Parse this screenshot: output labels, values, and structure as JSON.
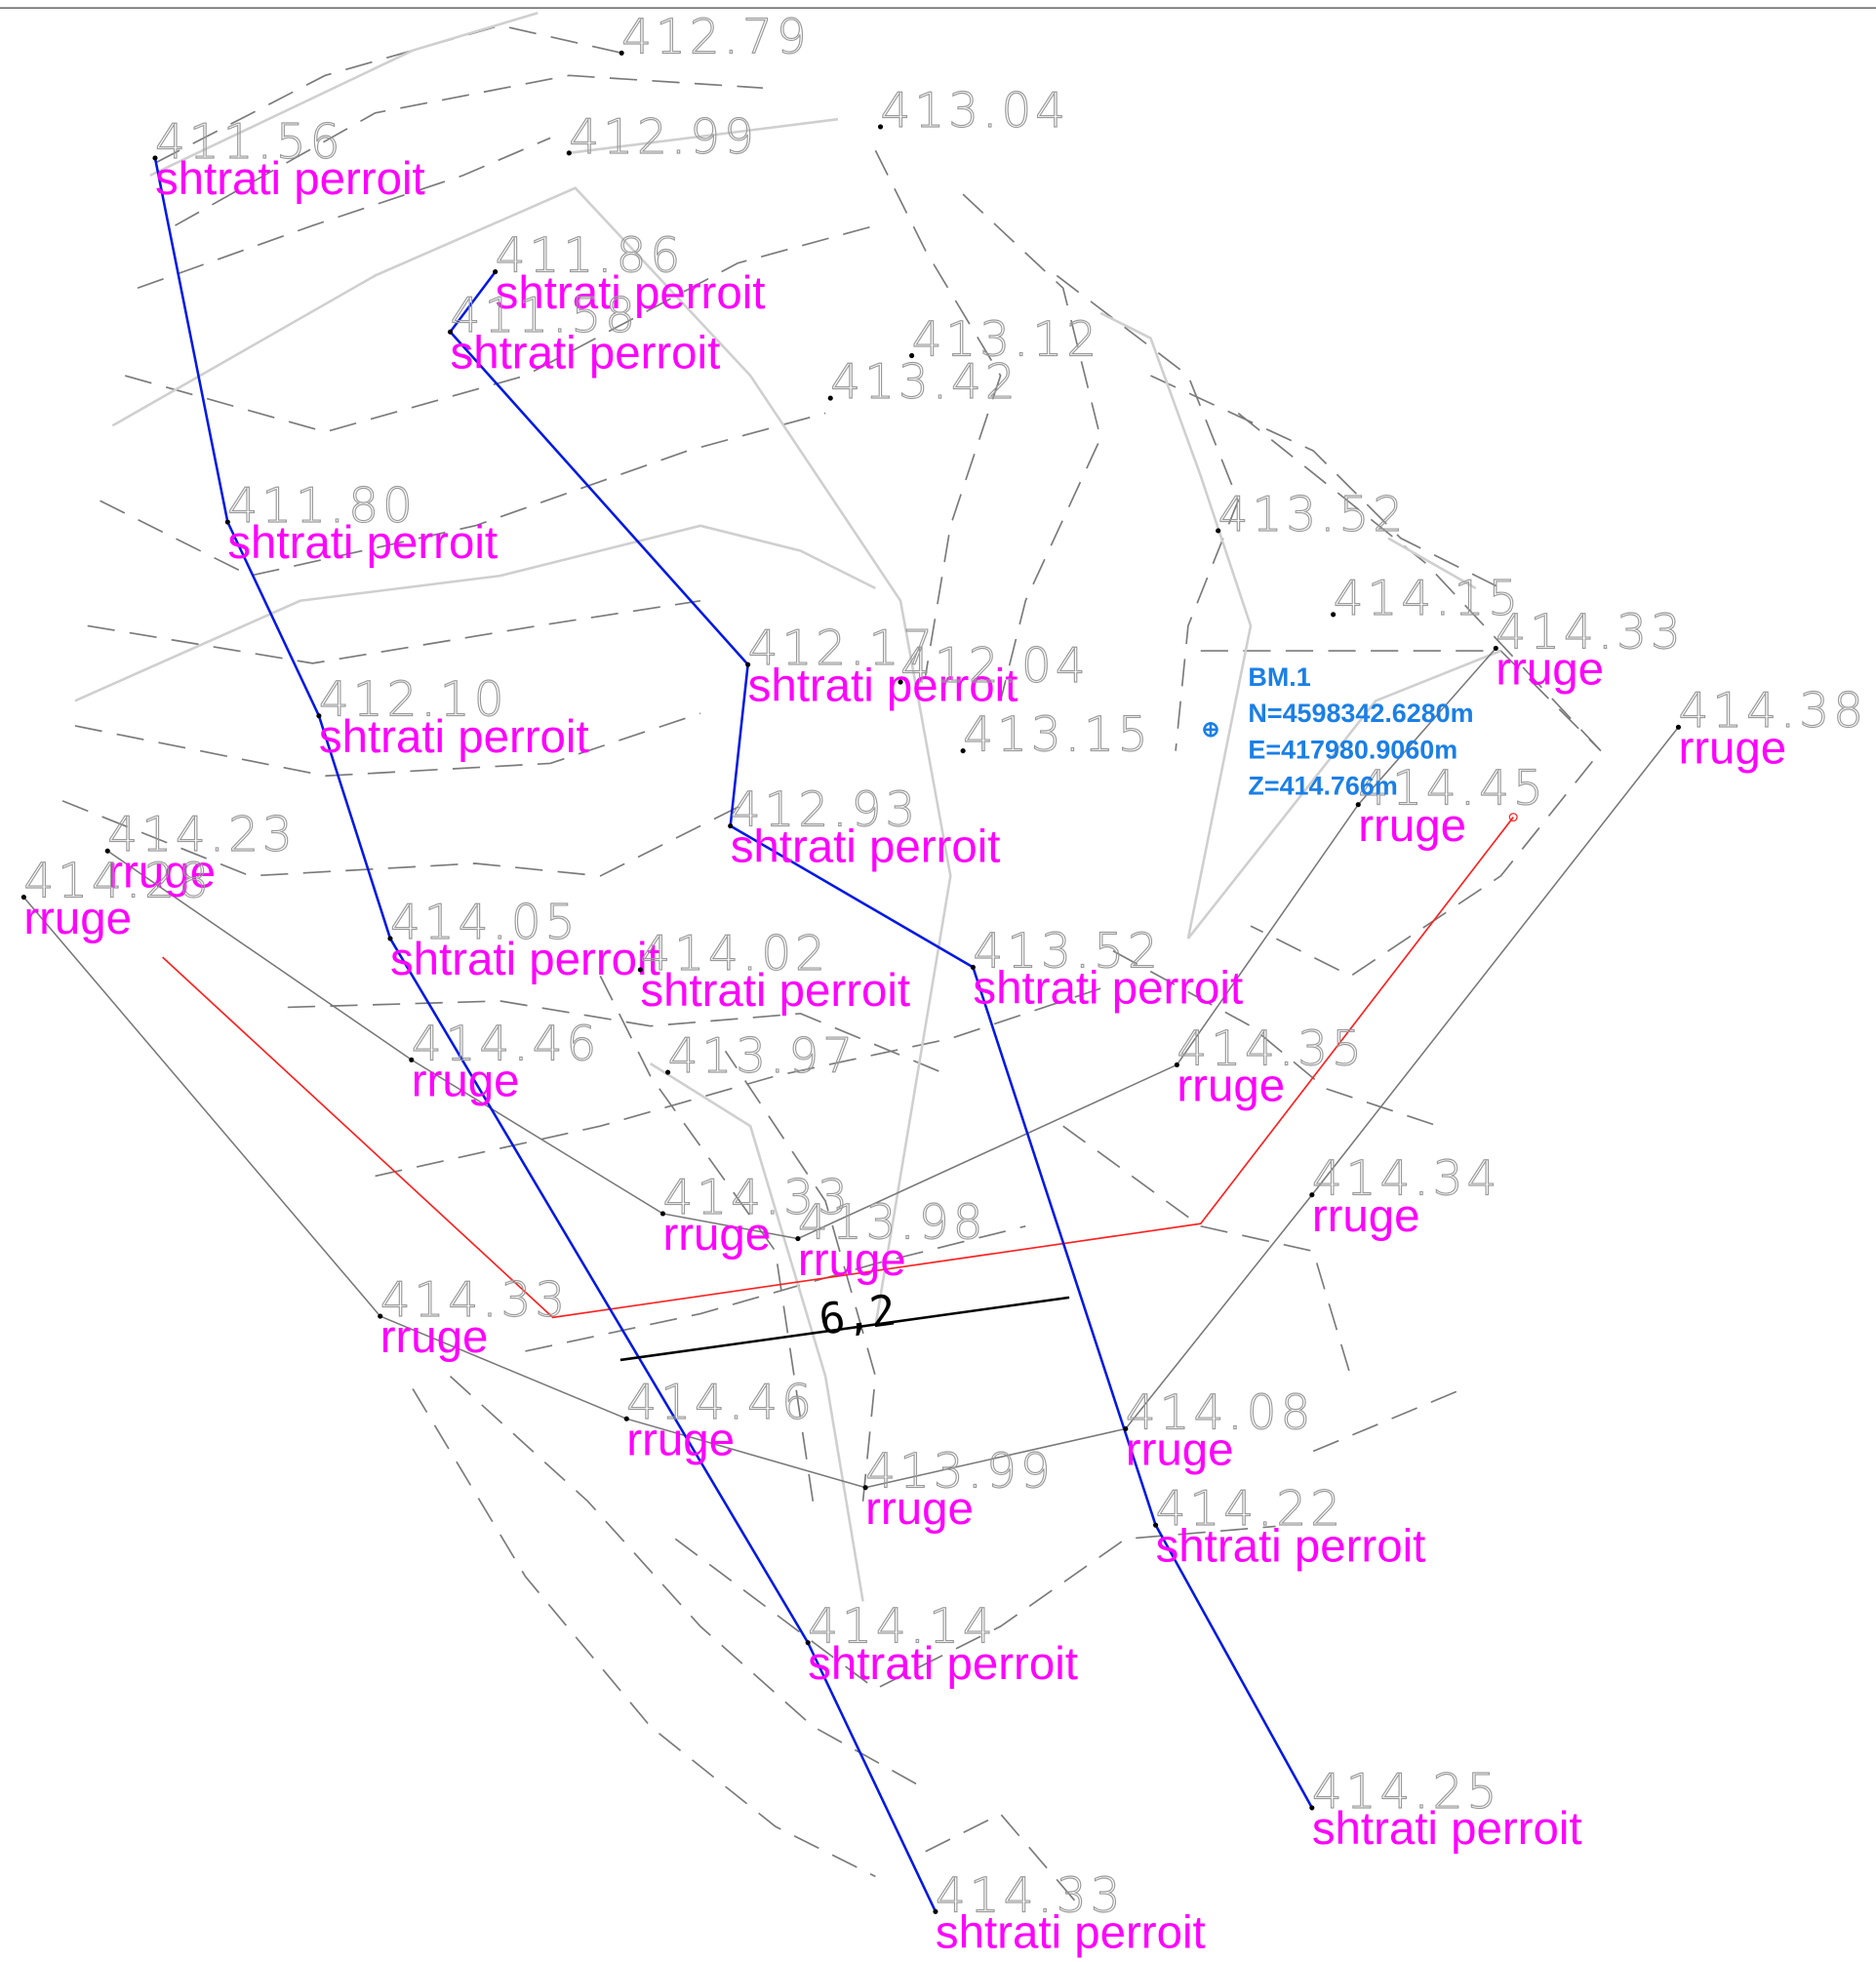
{
  "points": [
    {
      "elevation": "412.79"
    },
    {
      "elevation": "411.56",
      "code": "shtrati perroit"
    },
    {
      "elevation": "412.99"
    },
    {
      "elevation": "413.04"
    },
    {
      "elevation": "411.86",
      "code": "shtrati perroit"
    },
    {
      "elevation": "411.58",
      "code": "shtrati perroit"
    },
    {
      "elevation": "413.12"
    },
    {
      "elevation": "413.42"
    },
    {
      "elevation": "411.80",
      "code": "shtrati perroit"
    },
    {
      "elevation": "413.52"
    },
    {
      "elevation": "414.15"
    },
    {
      "elevation": "414.33",
      "code": "rruge"
    },
    {
      "elevation": "412.10",
      "code": "shtrati perroit"
    },
    {
      "elevation": "412.17",
      "code": "shtrati perroit"
    },
    {
      "elevation": "412.04"
    },
    {
      "elevation": "413.15"
    },
    {
      "elevation": "414.38",
      "code": "rruge"
    },
    {
      "elevation": "414.45",
      "code": "rruge"
    },
    {
      "elevation": "412.93",
      "code": "shtrati perroit"
    },
    {
      "elevation": "414.23",
      "code": "rruge"
    },
    {
      "elevation": "414.28",
      "code": "rruge"
    },
    {
      "elevation": "414.05",
      "code": "shtrati perroit"
    },
    {
      "elevation": "414.02",
      "code": "shtrati perroit"
    },
    {
      "elevation": "413.52",
      "code": "shtrati perroit"
    },
    {
      "elevation": "414.46",
      "code": "rruge"
    },
    {
      "elevation": "413.97"
    },
    {
      "elevation": "414.35",
      "code": "rruge"
    },
    {
      "elevation": "414.33",
      "code": "rruge"
    },
    {
      "elevation": "413.98",
      "code": "rruge"
    },
    {
      "elevation": "414.34",
      "code": "rruge"
    },
    {
      "elevation": "414.33",
      "code": "rruge"
    },
    {
      "elevation": "414.46",
      "code": "rruge"
    },
    {
      "elevation": "414.08",
      "code": "rruge"
    },
    {
      "elevation": "413.99",
      "code": "rruge"
    },
    {
      "elevation": "414.22",
      "code": "shtrati perroit"
    },
    {
      "elevation": "414.14",
      "code": "shtrati perroit"
    },
    {
      "elevation": "414.25",
      "code": "shtrati perroit"
    },
    {
      "elevation": "414.33",
      "code": "shtrati perroit"
    }
  ],
  "benchmark": {
    "name": "BM.1",
    "northing": "N=4598342.6280m",
    "easting": "E=417980.9060m",
    "height": "Z=414.766m"
  },
  "dimension": "6,2"
}
